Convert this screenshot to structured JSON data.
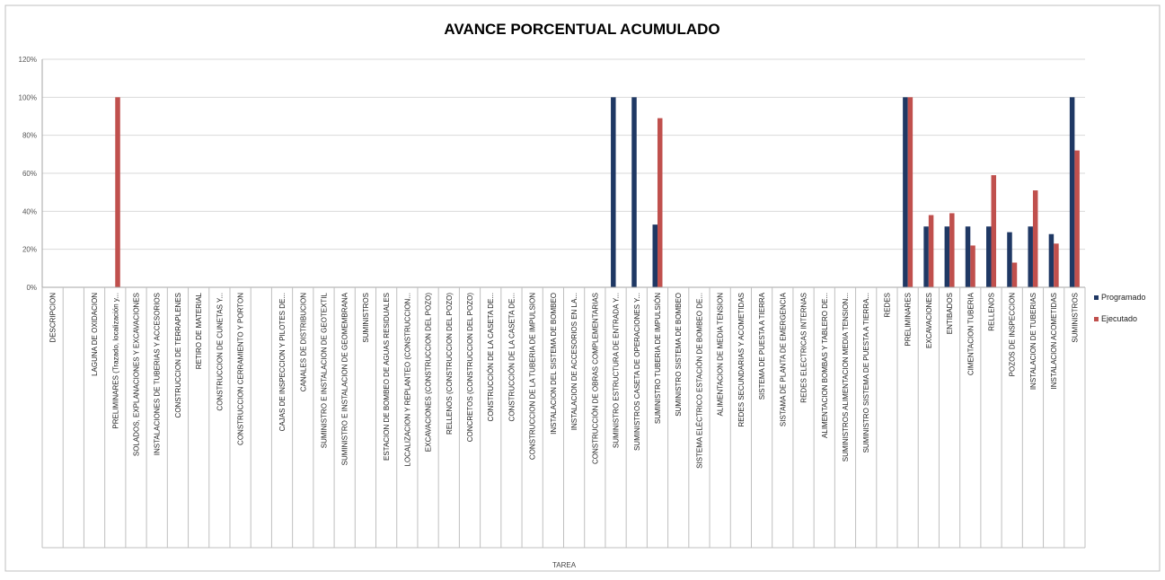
{
  "chart_data": {
    "type": "bar",
    "title": "AVANCE PORCENTUAL ACUMULADO",
    "xlabel": "TAREA",
    "ylabel": "",
    "ylim": [
      0,
      1.2
    ],
    "yticks": [
      "0%",
      "20%",
      "40%",
      "60%",
      "80%",
      "100%",
      "120%"
    ],
    "grid": true,
    "legend_position": "right",
    "categories": [
      "DESCRIPCION",
      "",
      "LAGUNA DE OXIDACION",
      "PRELIMINARES (Trazado, localización y...",
      "SOLADOS, EXPLANACIONES Y EXCAVACIONES",
      "INSTALACIONES DE TUBERIAS Y ACCESORIOS",
      "CONSTRUCCION DE TERRAPLENES",
      "RETIRO DE MATERIAL",
      "CONSTRUCCION DE CUNETAS Y...",
      "CONSTRUCCION CERRAMIENTO Y PORTON",
      "",
      "CAJAS DE INSPECCION Y PILOTES DE...",
      "CANALES DE DISTRIBUCION",
      "SUMINISTRO E INSTALACION DE GEOTEXTIL",
      "SUMINISTRO E INSTALACION DE GEOMEMBRANA",
      "SUMINISTROS",
      "ESTACION DE BOMBEO DE AGUAS RESIDUALES",
      "LOCALIZACION Y REPLANTEO (CONSTRUCCION...",
      "EXCAVACIONES (CONSTRUCCION DEL POZO)",
      "RELLENOS (CONSTRUCCION DEL POZO)",
      "CONCRETOS (CONSTRUCCION DEL POZO)",
      "CONSTRUCCIÓN DE LA CASETA DE...",
      "CONSTRUCCIÓN DE LA CASETA DE...",
      "CONSTRUCCION DE LA TUBERIA DE IMPULSION",
      "INSTALACION DEL SISTEMA DE BOMBEO",
      "INSTALACION DE ACCESORIOS EN LA...",
      "CONSTRUCCIÓN DE OBRAS COMPLEMENTARIAS",
      "SUMINISTRO ESTRUCTURA DE ENTRADA Y...",
      "SUMINISTROS CASETA DE OPERACIONES Y...",
      "SUMINISTRO TUBERIA DE IMPULSIÓN",
      "SUMINISTRO SISTEMA DE BOMBEO",
      "SISTEMA ELÉCTRICO ESTACIÓN DE BOMBEO DE...",
      "ALIMENTACION DE MEDIA TENSION",
      "REDES SECUNDARIAS Y ACOMETIDAS",
      "SISTEMA DE PUESTA A TIERRA",
      "SISTAMA DE PLANTA DE EMERGENCIA",
      "REDES ELECTRICAS INTERNAS",
      "ALIMENTACION BOMBAS Y TABLERO DE...",
      "SUMINISTROS ALIMENTACION MEDIA TENSION...",
      "SUMINISTRO SISTEMA DE PUESTA A TIERRA...",
      "REDES",
      "PRELIMINARES",
      "EXCAVACIONES",
      "ENTIBADOS",
      "CIMENTACION TUBERIA",
      "RELLENOS",
      "POZOS DE INSPECCION",
      "INSTALACION DE TUBERIAS",
      "INSTALACION ACOMETIDAS",
      "SUMINISTROS"
    ],
    "series": [
      {
        "name": "Programado",
        "color": "#1F3864",
        "values": [
          0,
          0,
          0,
          0,
          0,
          0,
          0,
          0,
          0,
          0,
          0,
          0,
          0,
          0,
          0,
          0,
          0,
          0,
          0,
          0,
          0,
          0,
          0,
          0,
          0,
          0,
          0,
          1.0,
          1.0,
          0.33,
          0,
          0,
          0,
          0,
          0,
          0,
          0,
          0,
          0,
          0,
          0,
          1.0,
          0.32,
          0.32,
          0.32,
          0.32,
          0.29,
          0.32,
          0.28,
          1.0
        ]
      },
      {
        "name": "Ejecutado",
        "color": "#C0504D",
        "values": [
          0,
          0,
          0,
          1.0,
          0,
          0,
          0,
          0,
          0,
          0,
          0,
          0,
          0,
          0,
          0,
          0,
          0,
          0,
          0,
          0,
          0,
          0,
          0,
          0,
          0,
          0,
          0,
          0,
          0,
          0.89,
          0,
          0,
          0,
          0,
          0,
          0,
          0,
          0,
          0,
          0,
          0,
          1.0,
          0.38,
          0.39,
          0.22,
          0.59,
          0.13,
          0.51,
          0.23,
          0.72
        ]
      }
    ]
  }
}
